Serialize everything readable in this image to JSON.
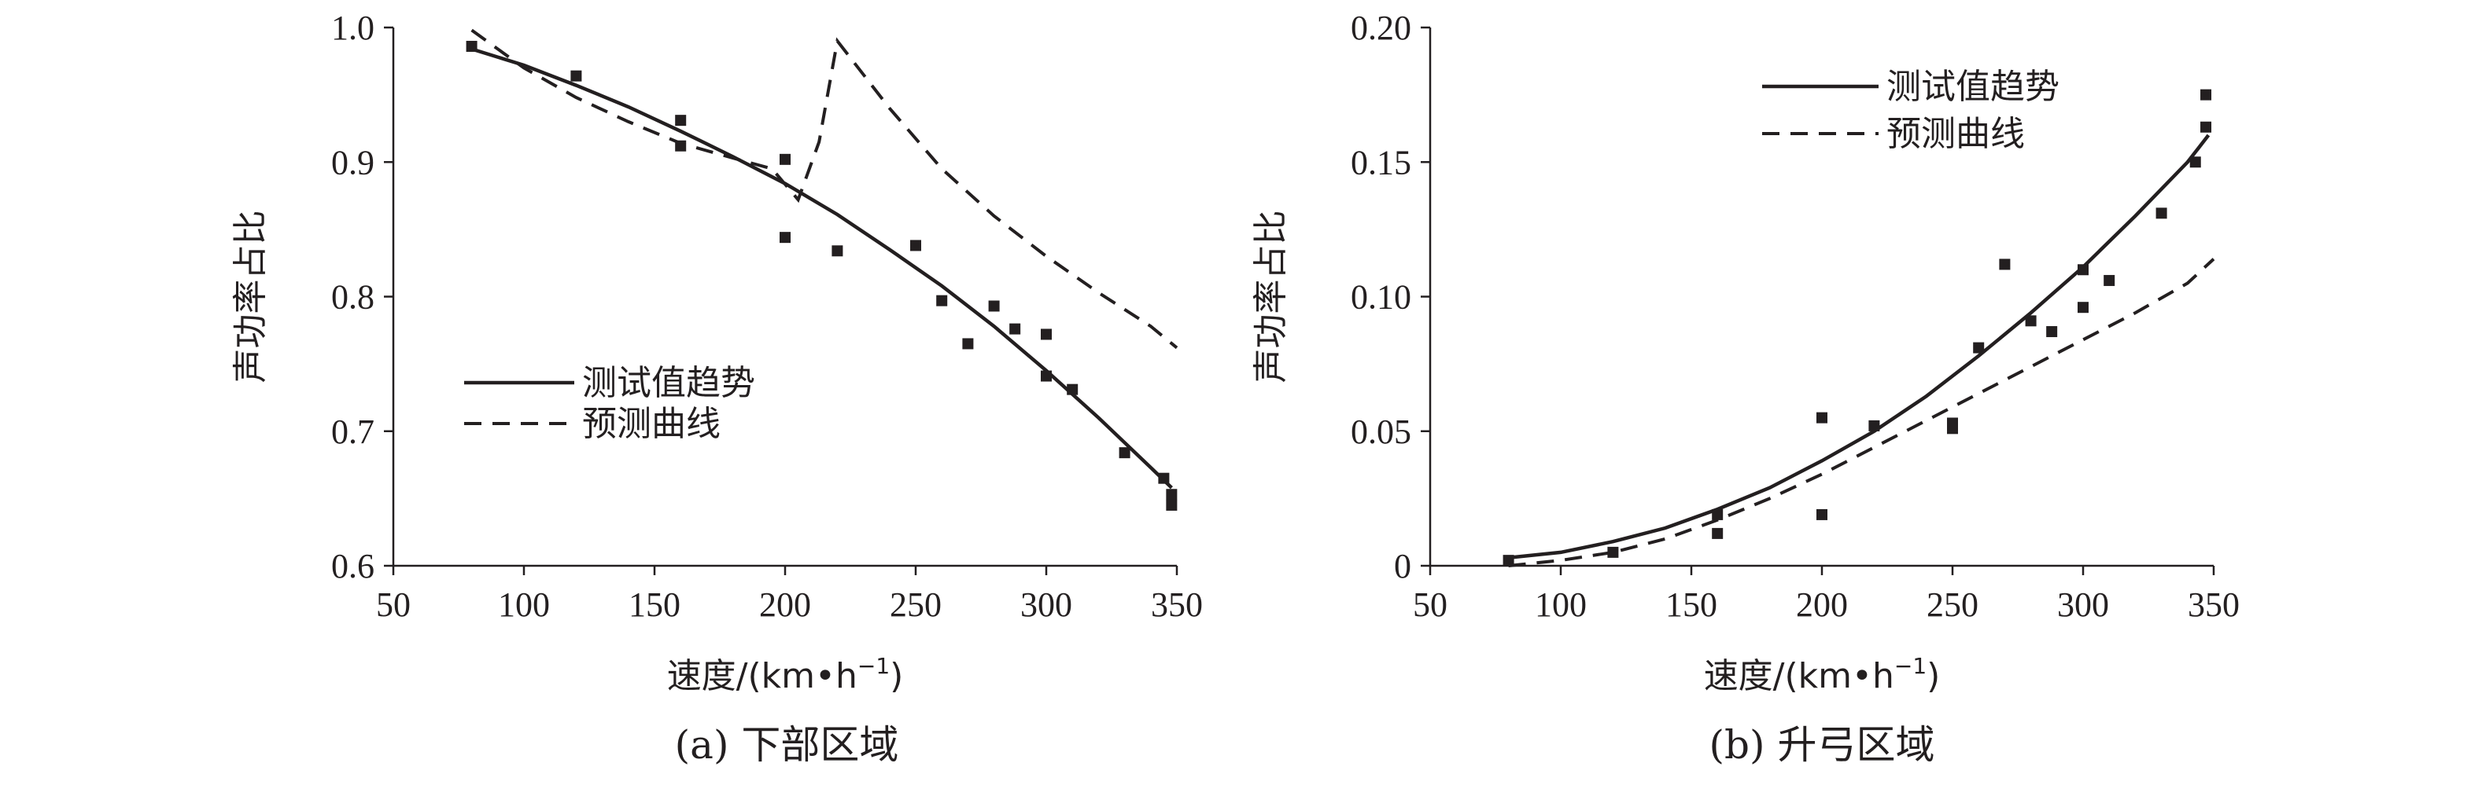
{
  "chart_data": [
    {
      "panel_id": "a",
      "type": "scatter",
      "caption": "(a) 下部区域",
      "xlabel": "速度/(km•h",
      "xlabel_sup": "−1",
      "xlabel_close": ")",
      "ylabel": "声功率占比",
      "xlim": [
        50,
        350
      ],
      "ylim": [
        0.6,
        1.0
      ],
      "xticks": [
        "50",
        "100",
        "150",
        "200",
        "250",
        "300",
        "350"
      ],
      "yticks": [
        "0.6",
        "0.7",
        "0.8",
        "0.9",
        "1.0"
      ],
      "legend": {
        "trend_label": "测试值趋势",
        "pred_label": "预测曲线",
        "position": "center-left"
      },
      "series": [
        {
          "name": "测试值",
          "style": "square-markers",
          "x": [
            80,
            120,
            160,
            160,
            200,
            200,
            220,
            250,
            260,
            270,
            280,
            288,
            300,
            300,
            310,
            330,
            345,
            348,
            348
          ],
          "y": [
            0.986,
            0.964,
            0.931,
            0.912,
            0.902,
            0.844,
            0.834,
            0.838,
            0.797,
            0.765,
            0.793,
            0.776,
            0.772,
            0.741,
            0.731,
            0.684,
            0.665,
            0.653,
            0.645
          ]
        },
        {
          "name": "测试值趋势",
          "style": "solid",
          "x": [
            80,
            100,
            120,
            140,
            160,
            180,
            200,
            220,
            240,
            260,
            280,
            300,
            320,
            340,
            348
          ],
          "y": [
            0.984,
            0.972,
            0.957,
            0.941,
            0.923,
            0.904,
            0.884,
            0.861,
            0.835,
            0.808,
            0.778,
            0.745,
            0.71,
            0.673,
            0.658
          ]
        },
        {
          "name": "预测曲线",
          "style": "dashed",
          "x": [
            80,
            100,
            120,
            140,
            160,
            180,
            195,
            205,
            213,
            220,
            240,
            260,
            280,
            300,
            320,
            340,
            350
          ],
          "y": [
            0.998,
            0.97,
            0.948,
            0.93,
            0.914,
            0.903,
            0.895,
            0.872,
            0.915,
            0.99,
            0.94,
            0.895,
            0.86,
            0.83,
            0.803,
            0.778,
            0.762
          ]
        }
      ]
    },
    {
      "panel_id": "b",
      "type": "scatter",
      "caption": "(b) 升弓区域",
      "xlabel": "速度/(km•h",
      "xlabel_sup": "−1",
      "xlabel_close": ")",
      "ylabel": "声功率占比",
      "xlim": [
        50,
        350
      ],
      "ylim": [
        0,
        0.2
      ],
      "xticks": [
        "50",
        "100",
        "150",
        "200",
        "250",
        "300",
        "350"
      ],
      "yticks": [
        "0",
        "0.05",
        "0.10",
        "0.15",
        "0.20"
      ],
      "legend": {
        "trend_label": "测试值趋势",
        "pred_label": "预测曲线",
        "position": "top-center"
      },
      "series": [
        {
          "name": "测试值",
          "style": "square-markers",
          "x": [
            80,
            120,
            160,
            160,
            200,
            200,
            220,
            250,
            250,
            260,
            270,
            280,
            288,
            300,
            300,
            310,
            330,
            343,
            347,
            347
          ],
          "y": [
            0.002,
            0.005,
            0.019,
            0.012,
            0.055,
            0.019,
            0.052,
            0.053,
            0.051,
            0.081,
            0.112,
            0.091,
            0.087,
            0.11,
            0.096,
            0.106,
            0.131,
            0.15,
            0.175,
            0.163
          ]
        },
        {
          "name": "测试值趋势",
          "style": "solid",
          "x": [
            80,
            100,
            120,
            140,
            160,
            180,
            200,
            220,
            240,
            260,
            280,
            300,
            320,
            340,
            348
          ],
          "y": [
            0.003,
            0.005,
            0.009,
            0.014,
            0.021,
            0.029,
            0.039,
            0.05,
            0.063,
            0.078,
            0.094,
            0.111,
            0.13,
            0.15,
            0.16
          ]
        },
        {
          "name": "预测曲线",
          "style": "dashed",
          "x": [
            80,
            100,
            120,
            140,
            160,
            180,
            200,
            220,
            240,
            260,
            280,
            300,
            320,
            340,
            350
          ],
          "y": [
            0.0,
            0.002,
            0.005,
            0.01,
            0.017,
            0.025,
            0.034,
            0.044,
            0.054,
            0.064,
            0.074,
            0.084,
            0.094,
            0.105,
            0.114
          ]
        }
      ]
    }
  ]
}
